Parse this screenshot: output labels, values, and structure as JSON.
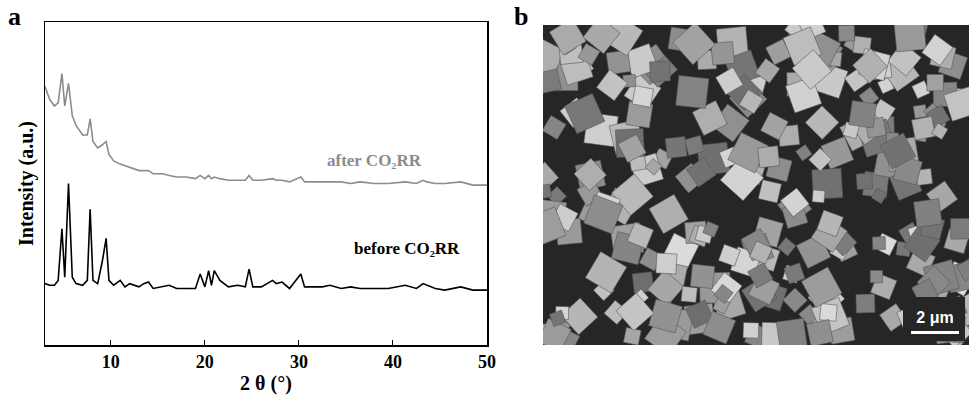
{
  "chart_data": {
    "type": "line",
    "panel_label": "a",
    "x_label": "2 θ (°)",
    "y_label": "Intensity (a.u.)",
    "xlim": [
      3,
      50
    ],
    "xticks": [
      10,
      20,
      30,
      40,
      50
    ],
    "ylim": [
      0,
      100
    ],
    "tick_labels": "x",
    "grid": false,
    "x": [
      3,
      3.5,
      4.0,
      4.4,
      4.8,
      5.1,
      5.5,
      5.9,
      6.3,
      7.0,
      7.5,
      7.8,
      8.1,
      8.6,
      9.1,
      9.5,
      9.8,
      10.3,
      11.0,
      11.5,
      12.0,
      13.0,
      13.5,
      14.0,
      14.5,
      15.5,
      16.2,
      17,
      18,
      19.0,
      19.5,
      20.0,
      20.4,
      20.7,
      21.0,
      21.6,
      22.5,
      23.5,
      24.3,
      24.7,
      25.1,
      26,
      27.2,
      27.6,
      28.2,
      29,
      30.2,
      30.6,
      31.5,
      32.5,
      33.3,
      34.5,
      35.5,
      36.5,
      38.0,
      39.5,
      41.3,
      42.5,
      43.2,
      43.6,
      44.5,
      45.5,
      47.2,
      48.5,
      50
    ],
    "series": [
      {
        "color": "#000000",
        "values": [
          19,
          18.5,
          18.5,
          20,
          36,
          21,
          50,
          21,
          19,
          18.5,
          20,
          42,
          20,
          19,
          26,
          33,
          20,
          18.5,
          20,
          18,
          19,
          18,
          19,
          19.5,
          17.5,
          18,
          18.5,
          17.5,
          17.5,
          17.5,
          22,
          18,
          23,
          18.5,
          23,
          20,
          18,
          18.5,
          18,
          23.5,
          18,
          18,
          20,
          19,
          19.5,
          17.5,
          22,
          18,
          18,
          18,
          18.5,
          17.5,
          18,
          17.5,
          17.5,
          17.5,
          18.5,
          17.5,
          19,
          18.5,
          17.5,
          17,
          18,
          17,
          17
        ]
      },
      {
        "color": "#8c8c8c",
        "values": [
          80,
          76,
          74,
          75,
          84,
          74,
          81,
          71,
          68,
          65,
          65,
          70,
          63,
          61,
          62,
          63,
          59,
          57,
          56,
          55.5,
          55,
          54,
          54,
          54,
          53,
          53,
          52.5,
          52,
          52,
          51.5,
          52.5,
          51.5,
          52.5,
          51.5,
          52,
          51.5,
          51,
          51,
          51,
          52.5,
          51,
          51,
          51.5,
          51,
          51,
          50.5,
          52,
          50.5,
          50.5,
          50.5,
          50.5,
          50.5,
          50,
          50.5,
          50,
          50,
          50.5,
          50,
          51,
          50.5,
          50,
          50,
          50.5,
          49.5,
          49.5
        ]
      }
    ],
    "annotations": [
      {
        "text": "after CO₂RR",
        "x": 38,
        "y": 57,
        "color": "#8c8c8c"
      },
      {
        "text": "before CO₂RR",
        "x": 41.5,
        "y": 30,
        "color": "#000000"
      }
    ]
  },
  "image_panel": {
    "panel_label": "b",
    "scale_bar_label": "2 μm"
  }
}
